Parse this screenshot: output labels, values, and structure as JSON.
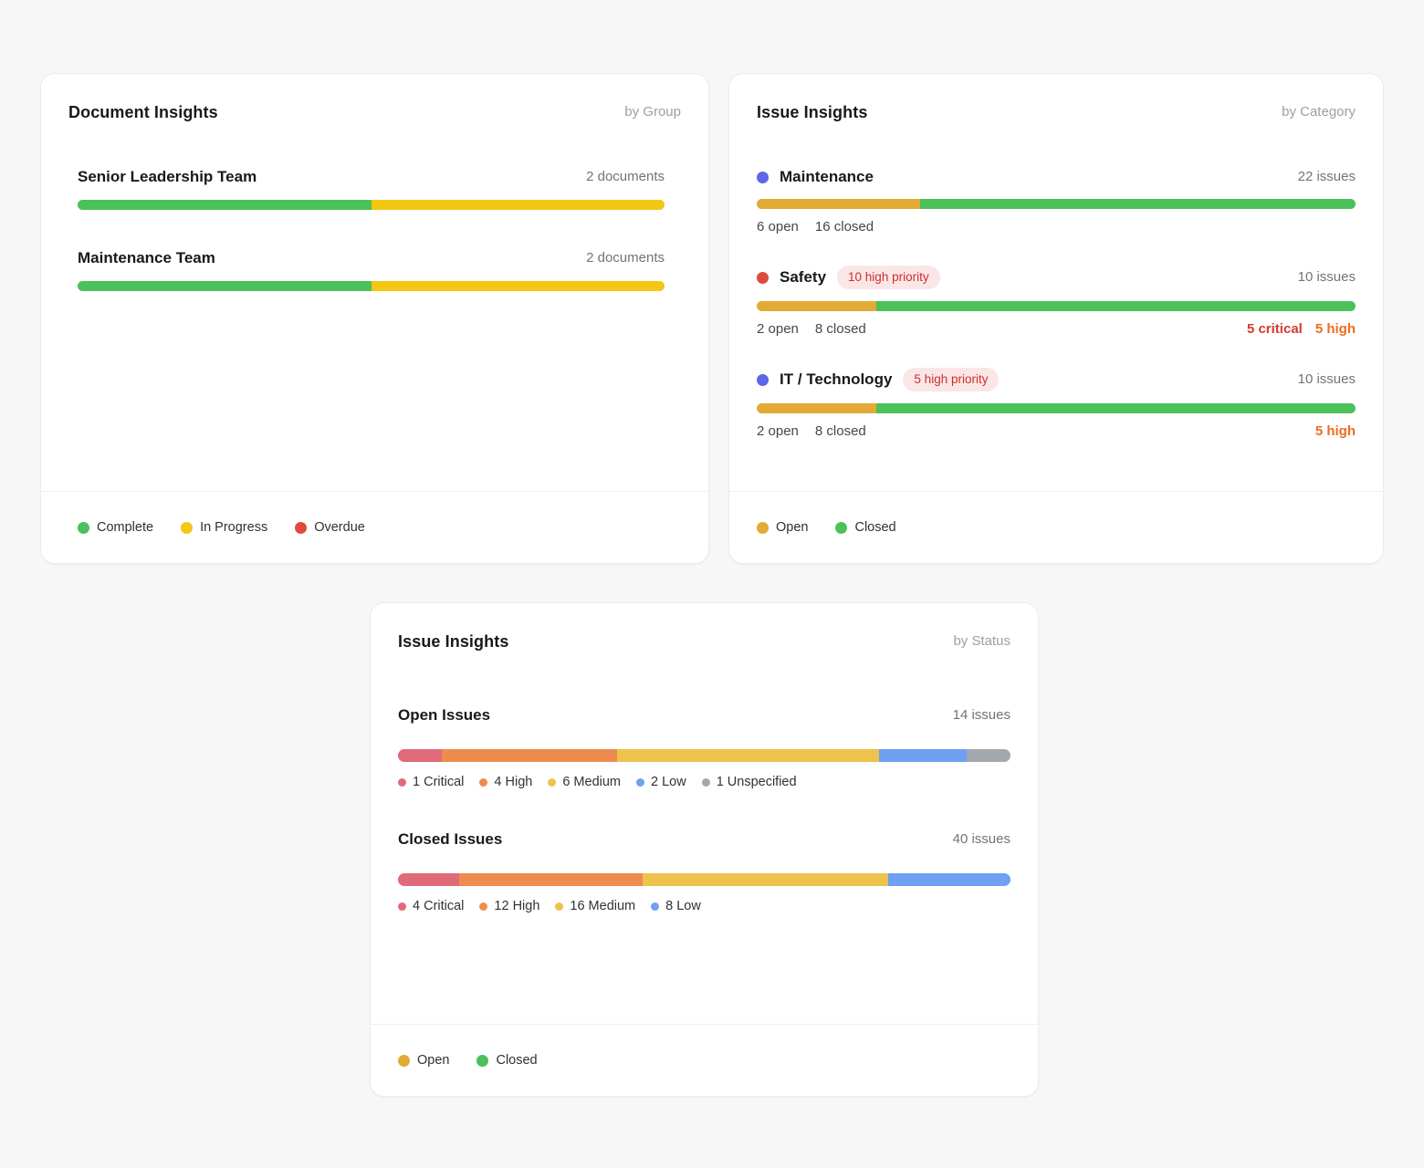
{
  "page": {
    "background": "#f7f7f8"
  },
  "cards": {
    "documents": {
      "title": "Document Insights",
      "subtitle": "by Group",
      "rows": [
        {
          "label": "Senior Leadership Team",
          "count": "2 documents",
          "segments": [
            {
              "name": "complete",
              "label": "Complete",
              "pct": 50,
              "color": "#4bc15a"
            },
            {
              "name": "in-progress",
              "label": "In Progress",
              "pct": 50,
              "color": "#f3c713"
            }
          ]
        },
        {
          "label": "Maintenance Team",
          "count": "2 documents",
          "segments": [
            {
              "name": "complete",
              "label": "Complete",
              "pct": 50,
              "color": "#4bc15a"
            },
            {
              "name": "in-progress",
              "label": "In Progress",
              "pct": 50,
              "color": "#f3c713"
            }
          ]
        }
      ],
      "legend": [
        {
          "label": "Complete",
          "color": "#4bc15a"
        },
        {
          "label": "In Progress",
          "color": "#f3c713"
        },
        {
          "label": "Overdue",
          "color": "#e2493c"
        }
      ]
    },
    "issues_by_category": {
      "title": "Issue Insights",
      "subtitle": "by Category",
      "rows": [
        {
          "label": "Maintenance",
          "dot_color": "#5e66e9",
          "count": "22 issues",
          "badge": "",
          "open_label": "6 open",
          "closed_label": "16 closed",
          "open_pct": 27.3,
          "open_color": "#e2ab35",
          "closed_color": "#4bc15a",
          "annotations": []
        },
        {
          "label": "Safety",
          "dot_color": "#dd4b40",
          "count": "10 issues",
          "badge": "10 high priority",
          "open_label": "2 open",
          "closed_label": "8 closed",
          "open_pct": 20,
          "open_color": "#e2ab35",
          "closed_color": "#4bc15a",
          "annotations": [
            {
              "text": "5 critical",
              "color": "#d43a2c"
            },
            {
              "text": "5 high",
              "color": "#ed6c1e"
            }
          ]
        },
        {
          "label": "IT / Technology",
          "dot_color": "#5e66e9",
          "count": "10 issues",
          "badge": "5 high priority",
          "open_label": "2 open",
          "closed_label": "8 closed",
          "open_pct": 20,
          "open_color": "#e2ab35",
          "closed_color": "#4bc15a",
          "annotations": [
            {
              "text": "5 high",
              "color": "#ed6c1e"
            }
          ]
        }
      ],
      "legend": [
        {
          "label": "Open",
          "color": "#e2ab35"
        },
        {
          "label": "Closed",
          "color": "#4bc15a"
        }
      ]
    },
    "issues_by_status": {
      "title": "Issue Insights",
      "subtitle": "by Status",
      "sections": [
        {
          "label": "Open Issues",
          "count": "14 issues",
          "total": 14,
          "segments": [
            {
              "label": "1 Critical",
              "value": 1,
              "color": "#e16a7a"
            },
            {
              "label": "4 High",
              "value": 4,
              "color": "#ed8c4e"
            },
            {
              "label": "6 Medium",
              "value": 6,
              "color": "#edc24d"
            },
            {
              "label": "2 Low",
              "value": 2,
              "color": "#6fa0f1"
            },
            {
              "label": "1 Unspecified",
              "value": 1,
              "color": "#a3a7ae"
            }
          ]
        },
        {
          "label": "Closed Issues",
          "count": "40 issues",
          "total": 40,
          "segments": [
            {
              "label": "4 Critical",
              "value": 4,
              "color": "#e16a7a"
            },
            {
              "label": "12 High",
              "value": 12,
              "color": "#ed8c4e"
            },
            {
              "label": "16 Medium",
              "value": 16,
              "color": "#edc24d"
            },
            {
              "label": "8 Low",
              "value": 8,
              "color": "#6fa0f1"
            }
          ]
        }
      ],
      "legend": [
        {
          "label": "Open",
          "color": "#e2ab35"
        },
        {
          "label": "Closed",
          "color": "#4bc15a"
        }
      ]
    }
  },
  "badge_style": {
    "bg": "#fbe6e7",
    "text": "#ce2f2a"
  },
  "chart_data": [
    {
      "type": "bar",
      "title": "Document Insights by Group",
      "orientation": "horizontal-stacked",
      "categories": [
        "Senior Leadership Team",
        "Maintenance Team"
      ],
      "series": [
        {
          "name": "Complete",
          "values": [
            1,
            1
          ]
        },
        {
          "name": "In Progress",
          "values": [
            1,
            1
          ]
        },
        {
          "name": "Overdue",
          "values": [
            0,
            0
          ]
        }
      ],
      "totals_label": [
        "2 documents",
        "2 documents"
      ],
      "legend": [
        "Complete",
        "In Progress",
        "Overdue"
      ],
      "legend_position": "bottom"
    },
    {
      "type": "bar",
      "title": "Issue Insights by Category",
      "orientation": "horizontal-stacked",
      "categories": [
        "Maintenance",
        "Safety",
        "IT / Technology"
      ],
      "series": [
        {
          "name": "Open",
          "values": [
            6,
            2,
            2
          ]
        },
        {
          "name": "Closed",
          "values": [
            16,
            8,
            8
          ]
        }
      ],
      "totals_label": [
        "22 issues",
        "10 issues",
        "10 issues"
      ],
      "annotations": {
        "Safety": [
          "10 high priority",
          "5 critical",
          "5 high"
        ],
        "IT / Technology": [
          "5 high priority",
          "5 high"
        ]
      },
      "legend": [
        "Open",
        "Closed"
      ],
      "legend_position": "bottom"
    },
    {
      "type": "bar",
      "title": "Issue Insights by Status",
      "orientation": "horizontal-stacked",
      "categories": [
        "Open Issues",
        "Closed Issues"
      ],
      "series": [
        {
          "name": "Critical",
          "values": [
            1,
            4
          ]
        },
        {
          "name": "High",
          "values": [
            4,
            12
          ]
        },
        {
          "name": "Medium",
          "values": [
            6,
            16
          ]
        },
        {
          "name": "Low",
          "values": [
            2,
            8
          ]
        },
        {
          "name": "Unspecified",
          "values": [
            1,
            0
          ]
        }
      ],
      "totals_label": [
        "14 issues",
        "40 issues"
      ],
      "legend": [
        "Open",
        "Closed"
      ],
      "legend_position": "bottom"
    }
  ]
}
